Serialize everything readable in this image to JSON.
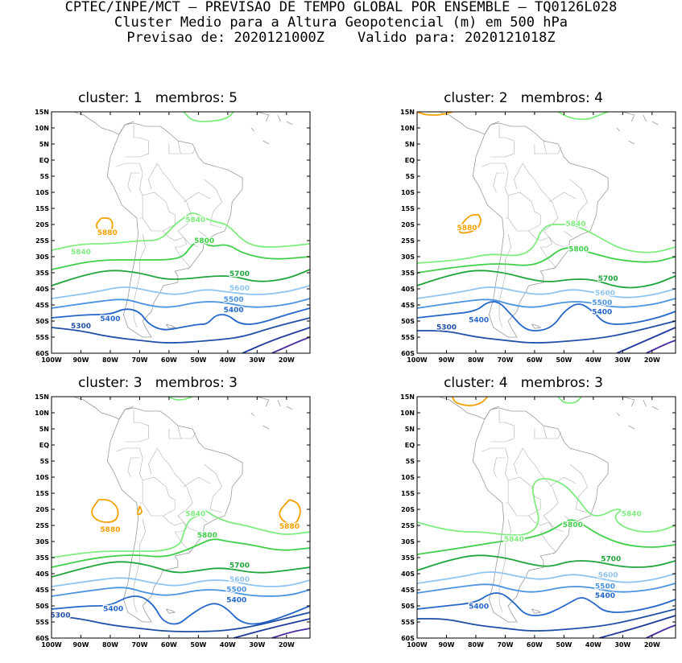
{
  "header": {
    "line1": "CPTEC/INPE/MCT – PREVISAO DE TEMPO GLOBAL POR ENSEMBLE – TQ0126L028",
    "line2": "Cluster Medio para a Altura Geopotencial (m) em 500 hPa",
    "line3": "Previsao de: 2020121000Z    Valido para: 2020121018Z"
  },
  "axes": {
    "lat_labels": [
      "15N",
      "10N",
      "5N",
      "EQ",
      "5S",
      "10S",
      "15S",
      "20S",
      "25S",
      "30S",
      "35S",
      "40S",
      "45S",
      "50S",
      "55S",
      "60S"
    ],
    "lon_labels": [
      "100W",
      "90W",
      "80W",
      "70W",
      "60W",
      "50W",
      "40W",
      "30W",
      "20W"
    ]
  },
  "colors": {
    "c5300": "#1f4fa6",
    "c5400": "#2466c9",
    "c5500": "#4a93e0",
    "c5600": "#8fc4f0",
    "c5700": "#1fa53b",
    "c5800": "#3fcf48",
    "c5840": "#7fec7f",
    "c5880": "#f5a000",
    "deep1": "#203a9e",
    "deep2": "#4a2ca0",
    "coast": "#9a9a9a"
  },
  "panels": [
    {
      "title": "cluster: 1   membros: 5",
      "labels": {
        "c5840a": "5840",
        "c5840b": "5840",
        "c5880": "5880",
        "c5800": "5800",
        "c5700": "5700",
        "c5600": "5600",
        "c5500": "5500",
        "c5400a": "5400",
        "c5400b": "5400",
        "c5300": "5300"
      }
    },
    {
      "title": "cluster: 2   membros: 4",
      "labels": {
        "c5840a": "5840",
        "c5880": "5880",
        "c5800": "5800",
        "c5700": "5700",
        "c5600": "5600",
        "c5500": "5500",
        "c5400a": "5400",
        "c5400b": "5400",
        "c5300": "5300"
      }
    },
    {
      "title": "cluster: 3   membros: 3",
      "labels": {
        "c5840a": "5840",
        "c5880a": "5880",
        "c5880b": "5880",
        "c5800": "5800",
        "c5700": "5700",
        "c5600": "5600",
        "c5500": "5500",
        "c5400a": "5400",
        "c5400b": "5400",
        "c5300": "5300"
      }
    },
    {
      "title": "cluster: 4   membros: 3",
      "labels": {
        "c5840a": "5840",
        "c5840b": "5840",
        "c5800": "5800",
        "c5700": "5700",
        "c5600": "5600",
        "c5500": "5500",
        "c5400a": "5400",
        "c5400b": "5400"
      }
    }
  ]
}
